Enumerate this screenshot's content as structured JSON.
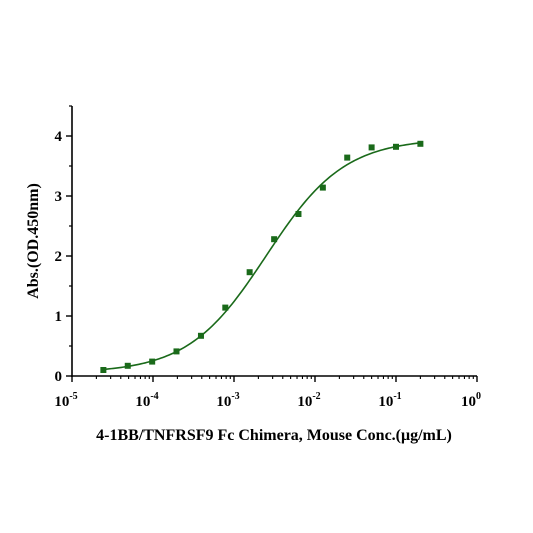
{
  "chart_data": {
    "type": "scatter",
    "xlabel": "4-1BB/TNFRSF9 Fc Chimera, Mouse Conc.(μg/mL)",
    "ylabel": "Abs.(OD.450nm)",
    "x_scale": "log10",
    "xlim": [
      1e-05,
      1
    ],
    "ylim": [
      0,
      4.5
    ],
    "x_ticks": [
      {
        "base": "10",
        "exp": "-5"
      },
      {
        "base": "10",
        "exp": "-4"
      },
      {
        "base": "10",
        "exp": "-3"
      },
      {
        "base": "10",
        "exp": "-2"
      },
      {
        "base": "10",
        "exp": "-1"
      },
      {
        "base": "10",
        "exp": "0"
      }
    ],
    "y_ticks": [
      "0",
      "1",
      "2",
      "3",
      "4"
    ],
    "grid": false,
    "marker_color": "#1a6a1a",
    "curve_color": "#1a6a1a",
    "points": {
      "x": [
        2.44e-05,
        4.88e-05,
        9.77e-05,
        0.000195,
        0.000391,
        0.000781,
        0.00156,
        0.00313,
        0.00625,
        0.0125,
        0.025,
        0.05,
        0.1,
        0.2
      ],
      "y": [
        0.1,
        0.17,
        0.24,
        0.41,
        0.67,
        1.14,
        1.73,
        2.28,
        2.7,
        3.14,
        3.64,
        3.81,
        3.82,
        3.87
      ]
    },
    "fit_curve": {
      "model": "4PL",
      "bottom": 0.05,
      "top": 3.96,
      "ec50": 0.0025,
      "hill": 0.9,
      "x_range": [
        2.44e-05,
        0.2
      ]
    }
  }
}
